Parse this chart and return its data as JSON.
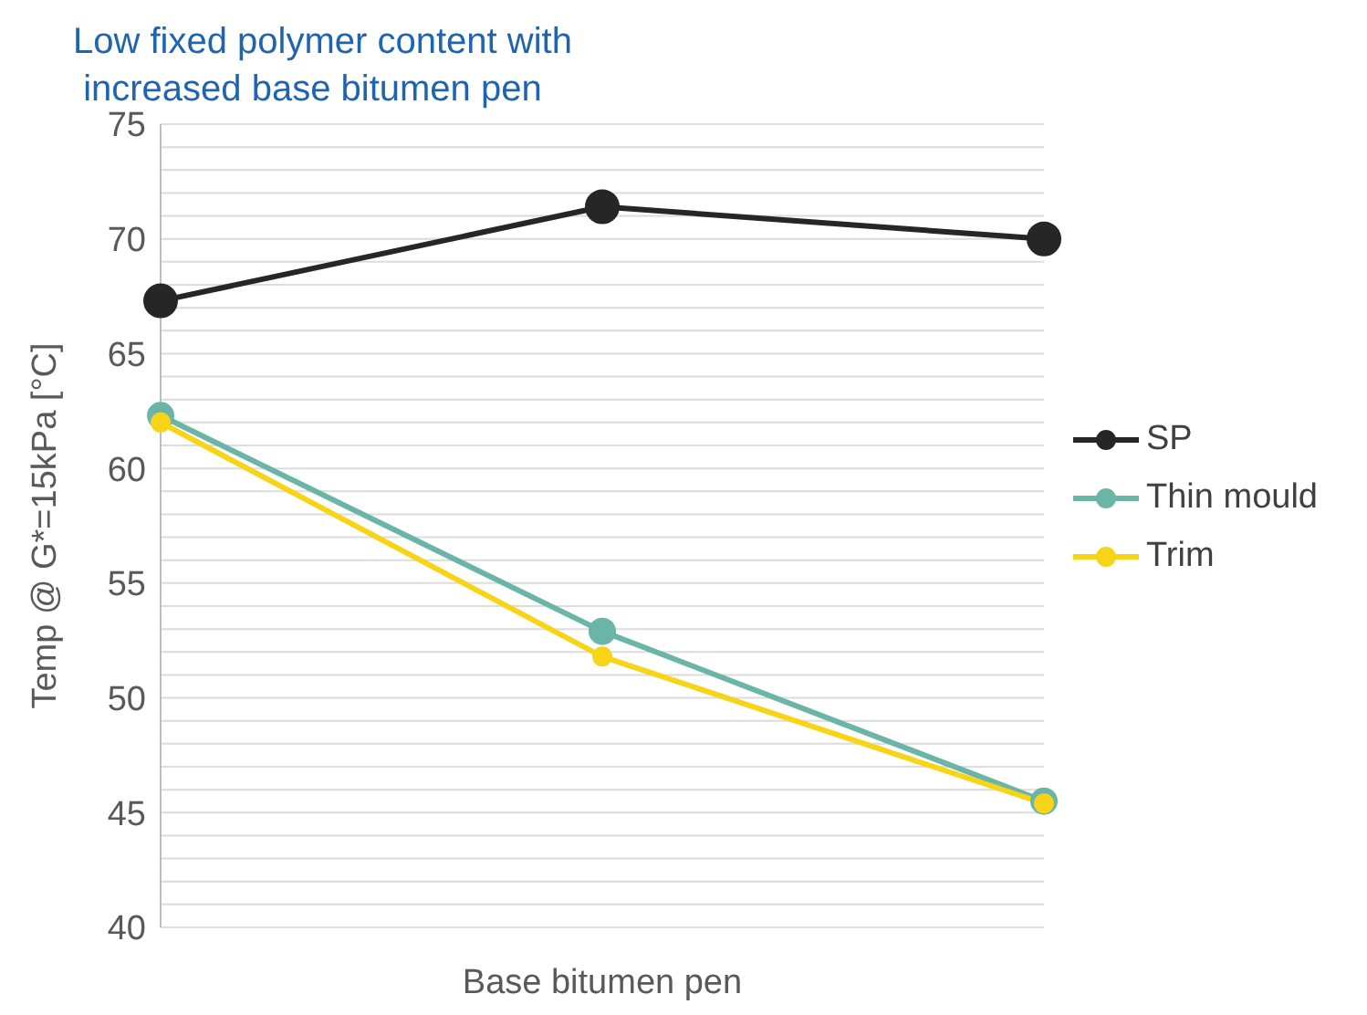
{
  "chart_data": {
    "type": "line",
    "title": "Low fixed polymer content with\n increased base bitumen pen",
    "xlabel": "Base bitumen pen",
    "ylabel": "Temp @ G*=15kPa [°C]",
    "categories": [
      null,
      null,
      null
    ],
    "series": [
      {
        "name": "SP",
        "color": "#262626",
        "values": [
          67.3,
          71.4,
          70.0
        ]
      },
      {
        "name": "Thin mould",
        "color": "#6bb5a8",
        "values": [
          62.3,
          52.9,
          45.5
        ]
      },
      {
        "name": "Trim",
        "color": "#f7d417",
        "values": [
          62.0,
          51.8,
          45.4
        ]
      }
    ],
    "ylim": [
      40,
      75
    ],
    "yticks": [
      40,
      {
        "value": 41,
        "label": null
      },
      {
        "value": 42,
        "label": null
      },
      {
        "value": 43,
        "label": null
      },
      {
        "value": 44,
        "label": null
      },
      45,
      {
        "value": 46,
        "label": null
      },
      {
        "value": 47,
        "label": null
      },
      {
        "value": 48,
        "label": null
      },
      {
        "value": 49,
        "label": null
      },
      50,
      {
        "value": 51,
        "label": null
      },
      {
        "value": 52,
        "label": null
      },
      {
        "value": 53,
        "label": null
      },
      {
        "value": 54,
        "label": null
      },
      55,
      {
        "value": 56,
        "label": null
      },
      {
        "value": 57,
        "label": null
      },
      {
        "value": 58,
        "label": null
      },
      {
        "value": 59,
        "label": null
      },
      60,
      {
        "value": 61,
        "label": null
      },
      {
        "value": 62,
        "label": null
      },
      {
        "value": 63,
        "label": null
      },
      {
        "value": 64,
        "label": null
      },
      65,
      {
        "value": 66,
        "label": null
      },
      {
        "value": 67,
        "label": null
      },
      {
        "value": 68,
        "label": null
      },
      {
        "value": 69,
        "label": null
      },
      70,
      {
        "value": 71,
        "label": null
      },
      {
        "value": 72,
        "label": null
      },
      {
        "value": 73,
        "label": null
      },
      {
        "value": 74,
        "label": null
      },
      75
    ],
    "grid": "y",
    "legend": "right",
    "marker": "circle",
    "line_style": "solid"
  }
}
